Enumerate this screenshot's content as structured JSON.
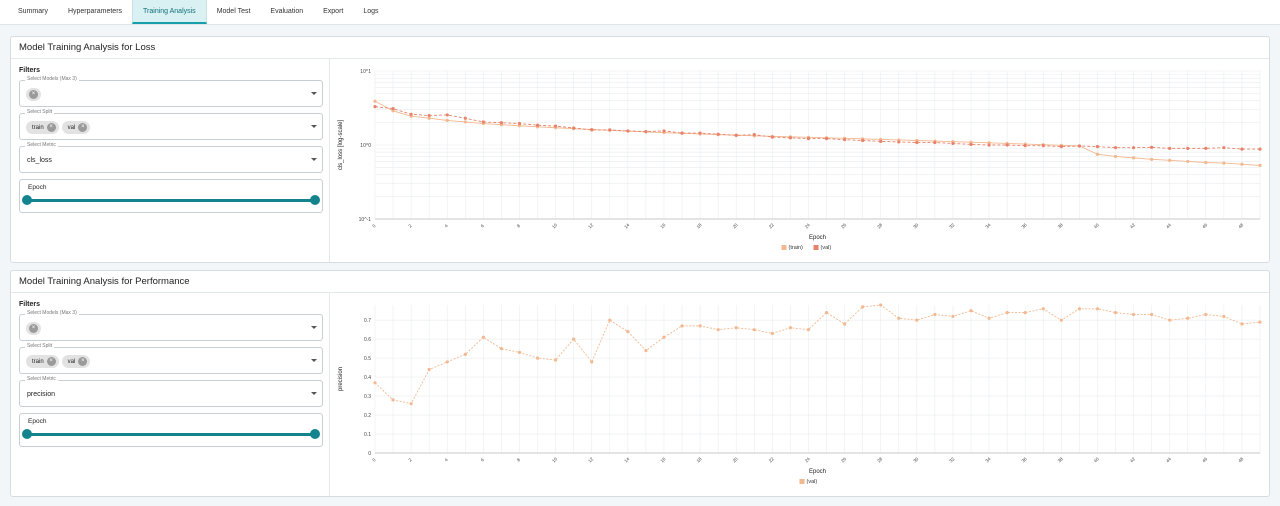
{
  "tabs": [
    "Summary",
    "Hyperparameters",
    "Training Analysis",
    "Model Test",
    "Evaluation",
    "Export",
    "Logs"
  ],
  "active_tab": "Training Analysis",
  "loss_panel": {
    "title": "Model Training Analysis for Loss",
    "filters_label": "Filters",
    "models_label": "Select Models (Max 3)",
    "split_label": "Select Split",
    "split_chips": [
      "train",
      "val"
    ],
    "metric_label": "Select Metric",
    "metric_value": "cls_loss",
    "epoch_label": "Epoch"
  },
  "perf_panel": {
    "title": "Model Training Analysis for Performance",
    "filters_label": "Filters",
    "models_label": "Select Models (Max 3)",
    "split_label": "Select Split",
    "split_chips": [
      "train",
      "val"
    ],
    "metric_label": "Select Metric",
    "metric_value": "precision",
    "epoch_label": "Epoch"
  },
  "colors": {
    "accent": "#13838e",
    "train": "#f2b88f",
    "val": "#e8826a"
  },
  "chart_data": [
    {
      "type": "line",
      "xlabel": "Epoch",
      "ylabel": "cls_loss [log-scale]",
      "y_scale": "log",
      "ylim": [
        0.1,
        10
      ],
      "y_ticks": [
        "10^-1",
        "10^0",
        "10^1"
      ],
      "x": [
        0,
        1,
        2,
        3,
        4,
        5,
        6,
        7,
        8,
        9,
        10,
        11,
        12,
        13,
        14,
        15,
        16,
        17,
        18,
        19,
        20,
        21,
        22,
        23,
        24,
        25,
        26,
        27,
        28,
        29,
        30,
        31,
        32,
        33,
        34,
        35,
        36,
        37,
        38,
        39,
        40,
        41,
        42,
        43,
        44,
        45,
        46,
        47,
        48,
        49
      ],
      "x_tick_labels": [
        0,
        2,
        4,
        6,
        8,
        10,
        12,
        14,
        16,
        18,
        20,
        22,
        24,
        26,
        28,
        30,
        32,
        34,
        36,
        38,
        40,
        42,
        44,
        46,
        48
      ],
      "legend": [
        "(train)",
        "(val)"
      ],
      "legend_position": "bottom-center",
      "series": [
        {
          "name": "(train)",
          "values": [
            3.9,
            2.9,
            2.45,
            2.3,
            2.15,
            2.05,
            1.95,
            1.88,
            1.82,
            1.76,
            1.71,
            1.66,
            1.62,
            1.58,
            1.54,
            1.5,
            1.47,
            1.44,
            1.41,
            1.38,
            1.36,
            1.33,
            1.31,
            1.29,
            1.27,
            1.25,
            1.23,
            1.21,
            1.19,
            1.17,
            1.15,
            1.13,
            1.11,
            1.09,
            1.07,
            1.05,
            1.03,
            1.01,
            0.99,
            0.97,
            0.75,
            0.7,
            0.67,
            0.64,
            0.62,
            0.6,
            0.58,
            0.57,
            0.55,
            0.53
          ]
        },
        {
          "name": "(val)",
          "values": [
            3.3,
            3.1,
            2.6,
            2.5,
            2.55,
            2.3,
            2.05,
            2.0,
            1.95,
            1.85,
            1.8,
            1.7,
            1.6,
            1.6,
            1.55,
            1.52,
            1.55,
            1.45,
            1.45,
            1.4,
            1.35,
            1.38,
            1.28,
            1.25,
            1.22,
            1.22,
            1.18,
            1.15,
            1.12,
            1.1,
            1.08,
            1.08,
            1.05,
            1.02,
            1.0,
            1.0,
            0.98,
            0.98,
            0.95,
            0.97,
            0.95,
            0.92,
            0.92,
            0.93,
            0.9,
            0.9,
            0.9,
            0.92,
            0.88,
            0.88
          ]
        }
      ]
    },
    {
      "type": "line",
      "xlabel": "Epoch",
      "ylabel": "precision",
      "ylim": [
        0,
        0.78
      ],
      "y_ticks": [
        0,
        0.1,
        0.2,
        0.3,
        0.4,
        0.5,
        0.6,
        0.7
      ],
      "x": [
        0,
        1,
        2,
        3,
        4,
        5,
        6,
        7,
        8,
        9,
        10,
        11,
        12,
        13,
        14,
        15,
        16,
        17,
        18,
        19,
        20,
        21,
        22,
        23,
        24,
        25,
        26,
        27,
        28,
        29,
        30,
        31,
        32,
        33,
        34,
        35,
        36,
        37,
        38,
        39,
        40,
        41,
        42,
        43,
        44,
        45,
        46,
        47,
        48,
        49
      ],
      "x_tick_labels": [
        0,
        2,
        4,
        6,
        8,
        10,
        12,
        14,
        16,
        18,
        20,
        22,
        24,
        26,
        28,
        30,
        32,
        34,
        36,
        38,
        40,
        42,
        44,
        46,
        48
      ],
      "legend": [
        "(val)"
      ],
      "legend_position": "bottom-center",
      "series": [
        {
          "name": "(val)",
          "values": [
            0.37,
            0.28,
            0.26,
            0.44,
            0.48,
            0.52,
            0.61,
            0.55,
            0.53,
            0.5,
            0.49,
            0.6,
            0.48,
            0.7,
            0.64,
            0.54,
            0.61,
            0.67,
            0.67,
            0.65,
            0.66,
            0.65,
            0.63,
            0.66,
            0.65,
            0.74,
            0.68,
            0.77,
            0.78,
            0.71,
            0.7,
            0.73,
            0.72,
            0.75,
            0.71,
            0.74,
            0.74,
            0.76,
            0.7,
            0.76,
            0.76,
            0.74,
            0.73,
            0.73,
            0.7,
            0.71,
            0.73,
            0.72,
            0.68,
            0.69
          ]
        }
      ]
    }
  ]
}
